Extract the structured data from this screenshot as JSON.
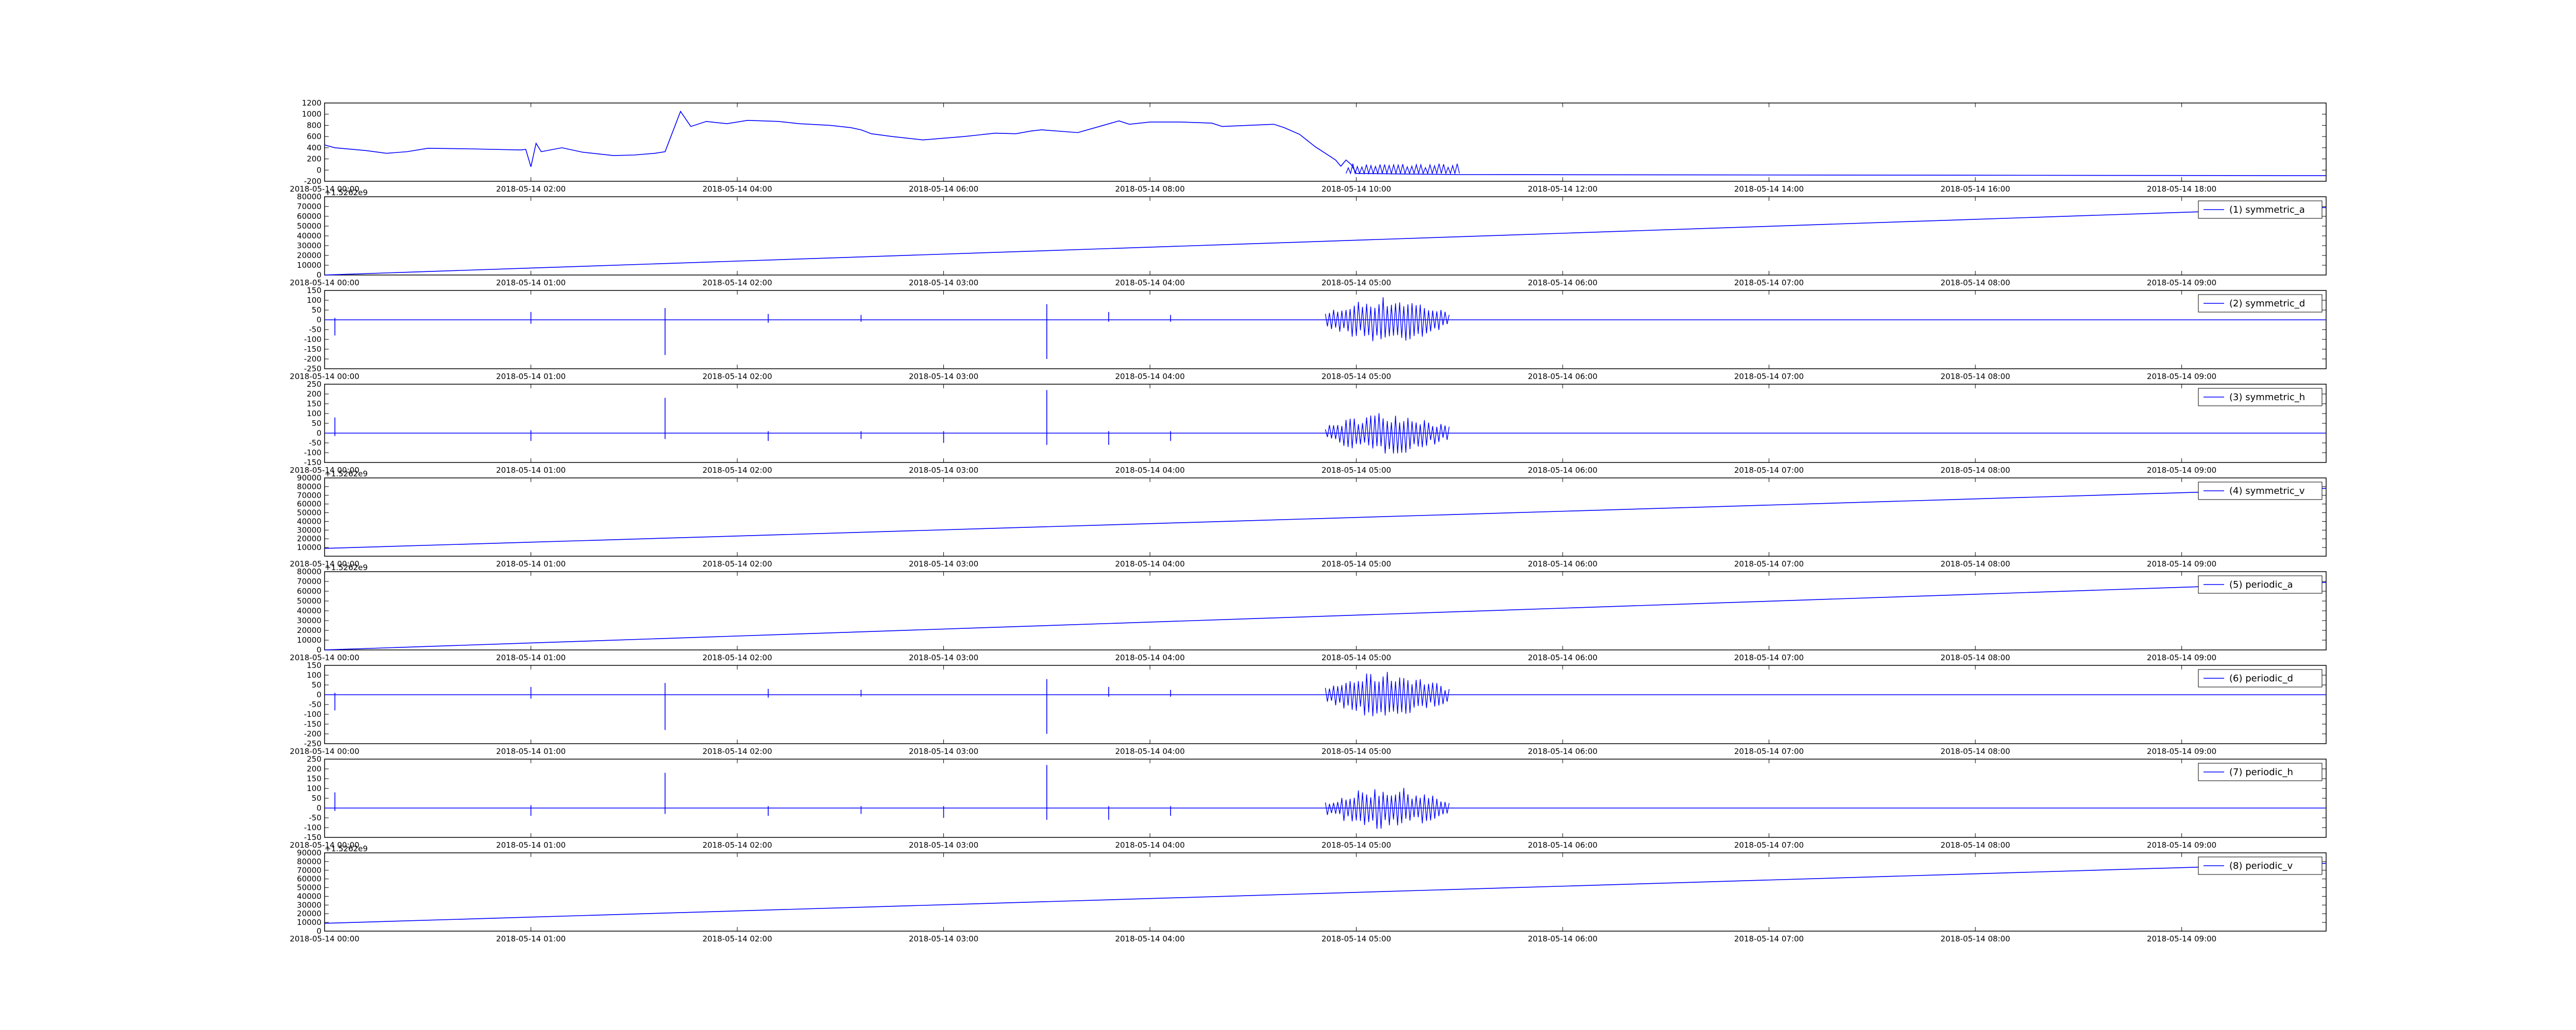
{
  "line_color": "#0000ff",
  "chart_data": [
    {
      "type": "line",
      "legend": "",
      "offset": "",
      "ylim": [
        -200,
        1200
      ],
      "yticks": [
        1200,
        1000,
        800,
        600,
        400,
        200,
        0,
        -200
      ],
      "xticks": [
        "2018-05-14 00:00",
        "2018-05-14 02:00",
        "2018-05-14 04:00",
        "2018-05-14 06:00",
        "2018-05-14 08:00",
        "2018-05-14 10:00",
        "2018-05-14 12:00",
        "2018-05-14 14:00",
        "2018-05-14 16:00",
        "2018-05-14 18:00"
      ],
      "x_hours": [
        0,
        19.4
      ],
      "series": [
        {
          "x_hours": [
            0,
            0.1,
            0.4,
            0.6,
            0.8,
            1.0,
            1.4,
            1.9,
            1.95,
            2.0,
            2.05,
            2.1,
            2.3,
            2.5,
            2.8,
            3.0,
            3.2,
            3.3,
            3.45,
            3.55,
            3.7,
            3.9,
            4.1,
            4.4,
            4.6,
            4.9,
            5.1,
            5.2,
            5.3,
            5.5,
            5.8,
            6.2,
            6.5,
            6.7,
            6.85,
            6.95,
            7.3,
            7.7,
            7.8,
            8.0,
            8.3,
            8.6,
            8.7,
            9.2,
            9.3,
            9.45,
            9.6,
            9.7,
            9.8,
            9.85,
            9.9,
            9.95,
            10.0,
            10.5,
            11.0,
            19.4
          ],
          "values": [
            450,
            400,
            350,
            300,
            330,
            390,
            380,
            360,
            370,
            60,
            480,
            330,
            400,
            320,
            260,
            270,
            300,
            330,
            1050,
            780,
            870,
            830,
            890,
            870,
            830,
            800,
            760,
            720,
            650,
            600,
            540,
            600,
            660,
            650,
            700,
            720,
            670,
            880,
            820,
            860,
            860,
            840,
            780,
            820,
            760,
            640,
            420,
            300,
            180,
            70,
            180,
            100,
            -60,
            -70,
            -80,
            -100
          ]
        }
      ],
      "spikes": []
    },
    {
      "type": "line",
      "legend": "(1) symmetric_a",
      "offset": "+1.5262e9",
      "ylim": [
        0,
        80000
      ],
      "yticks": [
        80000,
        70000,
        60000,
        50000,
        40000,
        30000,
        20000,
        10000,
        0
      ],
      "xticks": [
        "2018-05-14 00:00",
        "2018-05-14 01:00",
        "2018-05-14 02:00",
        "2018-05-14 03:00",
        "2018-05-14 04:00",
        "2018-05-14 05:00",
        "2018-05-14 06:00",
        "2018-05-14 07:00",
        "2018-05-14 08:00",
        "2018-05-14 09:00"
      ],
      "x_hours": [
        0,
        9.7
      ],
      "series": [
        {
          "x_hours": [
            0,
            9.7
          ],
          "values": [
            0,
            69000
          ]
        }
      ],
      "spikes": []
    },
    {
      "type": "line",
      "legend": "(2) symmetric_d",
      "offset": "",
      "ylim": [
        -250,
        150
      ],
      "yticks": [
        150,
        100,
        50,
        0,
        -50,
        -100,
        -150,
        -200,
        -250
      ],
      "xticks": [
        "2018-05-14 00:00",
        "2018-05-14 01:00",
        "2018-05-14 02:00",
        "2018-05-14 03:00",
        "2018-05-14 04:00",
        "2018-05-14 05:00",
        "2018-05-14 06:00",
        "2018-05-14 07:00",
        "2018-05-14 08:00",
        "2018-05-14 09:00"
      ],
      "x_hours": [
        0,
        9.7
      ],
      "series": [
        {
          "x_hours": [
            0,
            9.7
          ],
          "values": [
            0,
            0
          ]
        }
      ],
      "spikes": [
        [
          0.05,
          -80,
          10
        ],
        [
          1.0,
          -20,
          40
        ],
        [
          1.65,
          -180,
          60
        ],
        [
          2.15,
          -15,
          30
        ],
        [
          2.6,
          -10,
          25
        ],
        [
          3.5,
          -200,
          80
        ],
        [
          3.8,
          -10,
          40
        ],
        [
          4.1,
          -10,
          25
        ]
      ],
      "burst": {
        "x_start": 4.85,
        "x_end": 5.45,
        "amplitude": 120
      }
    },
    {
      "type": "line",
      "legend": "(3) symmetric_h",
      "offset": "",
      "ylim": [
        -150,
        250
      ],
      "yticks": [
        250,
        200,
        150,
        100,
        50,
        0,
        -50,
        -100,
        -150
      ],
      "xticks": [
        "2018-05-14 00:00",
        "2018-05-14 01:00",
        "2018-05-14 02:00",
        "2018-05-14 03:00",
        "2018-05-14 04:00",
        "2018-05-14 05:00",
        "2018-05-14 06:00",
        "2018-05-14 07:00",
        "2018-05-14 08:00",
        "2018-05-14 09:00"
      ],
      "x_hours": [
        0,
        9.7
      ],
      "series": [
        {
          "x_hours": [
            0,
            9.7
          ],
          "values": [
            0,
            0
          ]
        }
      ],
      "spikes": [
        [
          0.05,
          -15,
          80
        ],
        [
          1.0,
          -40,
          15
        ],
        [
          1.65,
          -30,
          180
        ],
        [
          2.15,
          -40,
          10
        ],
        [
          2.6,
          -30,
          10
        ],
        [
          3.0,
          -50,
          10
        ],
        [
          3.5,
          -60,
          220
        ],
        [
          3.8,
          -60,
          10
        ],
        [
          4.1,
          -40,
          10
        ]
      ],
      "burst": {
        "x_start": 4.85,
        "x_end": 5.45,
        "amplitude": 110
      }
    },
    {
      "type": "line",
      "legend": "(4) symmetric_v",
      "offset": "+1.5262e9",
      "ylim": [
        0,
        90000
      ],
      "yticks": [
        90000,
        80000,
        70000,
        60000,
        50000,
        40000,
        30000,
        20000,
        10000
      ],
      "xticks": [
        "2018-05-14 00:00",
        "2018-05-14 01:00",
        "2018-05-14 02:00",
        "2018-05-14 03:00",
        "2018-05-14 04:00",
        "2018-05-14 05:00",
        "2018-05-14 06:00",
        "2018-05-14 07:00",
        "2018-05-14 08:00",
        "2018-05-14 09:00"
      ],
      "x_hours": [
        0,
        9.7
      ],
      "series": [
        {
          "x_hours": [
            0,
            9.7
          ],
          "values": [
            9000,
            78000
          ]
        }
      ],
      "spikes": []
    },
    {
      "type": "line",
      "legend": "(5) periodic_a",
      "offset": "+1.5262e9",
      "ylim": [
        0,
        80000
      ],
      "yticks": [
        80000,
        70000,
        60000,
        50000,
        40000,
        30000,
        20000,
        10000,
        0
      ],
      "xticks": [
        "2018-05-14 00:00",
        "2018-05-14 01:00",
        "2018-05-14 02:00",
        "2018-05-14 03:00",
        "2018-05-14 04:00",
        "2018-05-14 05:00",
        "2018-05-14 06:00",
        "2018-05-14 07:00",
        "2018-05-14 08:00",
        "2018-05-14 09:00"
      ],
      "x_hours": [
        0,
        9.7
      ],
      "series": [
        {
          "x_hours": [
            0,
            9.7
          ],
          "values": [
            0,
            69000
          ]
        }
      ],
      "spikes": []
    },
    {
      "type": "line",
      "legend": "(6) periodic_d",
      "offset": "",
      "ylim": [
        -250,
        150
      ],
      "yticks": [
        150,
        100,
        50,
        0,
        -50,
        -100,
        -150,
        -200,
        -250
      ],
      "xticks": [
        "2018-05-14 00:00",
        "2018-05-14 01:00",
        "2018-05-14 02:00",
        "2018-05-14 03:00",
        "2018-05-14 04:00",
        "2018-05-14 05:00",
        "2018-05-14 06:00",
        "2018-05-14 07:00",
        "2018-05-14 08:00",
        "2018-05-14 09:00"
      ],
      "x_hours": [
        0,
        9.7
      ],
      "series": [
        {
          "x_hours": [
            0,
            9.7
          ],
          "values": [
            0,
            0
          ]
        }
      ],
      "spikes": [
        [
          0.05,
          -80,
          10
        ],
        [
          1.0,
          -20,
          40
        ],
        [
          1.65,
          -180,
          60
        ],
        [
          2.15,
          -15,
          30
        ],
        [
          2.6,
          -10,
          25
        ],
        [
          3.5,
          -200,
          80
        ],
        [
          3.8,
          -10,
          40
        ],
        [
          4.1,
          -10,
          25
        ]
      ],
      "burst": {
        "x_start": 4.85,
        "x_end": 5.45,
        "amplitude": 120
      }
    },
    {
      "type": "line",
      "legend": "(7) periodic_h",
      "offset": "",
      "ylim": [
        -150,
        250
      ],
      "yticks": [
        250,
        200,
        150,
        100,
        50,
        0,
        -50,
        -100,
        -150
      ],
      "xticks": [
        "2018-05-14 00:00",
        "2018-05-14 01:00",
        "2018-05-14 02:00",
        "2018-05-14 03:00",
        "2018-05-14 04:00",
        "2018-05-14 05:00",
        "2018-05-14 06:00",
        "2018-05-14 07:00",
        "2018-05-14 08:00",
        "2018-05-14 09:00"
      ],
      "x_hours": [
        0,
        9.7
      ],
      "series": [
        {
          "x_hours": [
            0,
            9.7
          ],
          "values": [
            0,
            0
          ]
        }
      ],
      "spikes": [
        [
          0.05,
          -15,
          80
        ],
        [
          1.0,
          -40,
          15
        ],
        [
          1.65,
          -30,
          180
        ],
        [
          2.15,
          -40,
          10
        ],
        [
          2.6,
          -30,
          10
        ],
        [
          3.0,
          -50,
          10
        ],
        [
          3.5,
          -60,
          220
        ],
        [
          3.8,
          -60,
          10
        ],
        [
          4.1,
          -40,
          10
        ]
      ],
      "burst": {
        "x_start": 4.85,
        "x_end": 5.45,
        "amplitude": 110
      }
    },
    {
      "type": "line",
      "legend": "(8) periodic_v",
      "offset": "+1.5262e9",
      "ylim": [
        0,
        90000
      ],
      "yticks": [
        90000,
        80000,
        70000,
        60000,
        50000,
        40000,
        30000,
        20000,
        10000,
        0
      ],
      "xticks": [
        "2018-05-14 00:00",
        "2018-05-14 01:00",
        "2018-05-14 02:00",
        "2018-05-14 03:00",
        "2018-05-14 04:00",
        "2018-05-14 05:00",
        "2018-05-14 06:00",
        "2018-05-14 07:00",
        "2018-05-14 08:00",
        "2018-05-14 09:00"
      ],
      "x_hours": [
        0,
        9.7
      ],
      "series": [
        {
          "x_hours": [
            0,
            9.7
          ],
          "values": [
            9000,
            78000
          ]
        }
      ],
      "spikes": []
    }
  ]
}
